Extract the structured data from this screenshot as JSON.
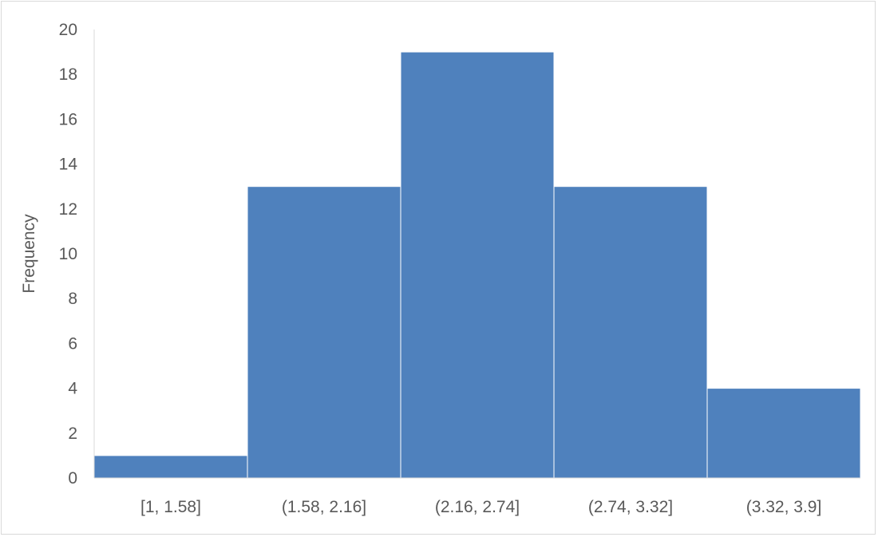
{
  "chart_data": {
    "type": "bar",
    "title": "",
    "xlabel": "",
    "ylabel": "Frequency",
    "categories": [
      "[1, 1.58]",
      "(1.58, 2.16]",
      "(2.16, 2.74]",
      "(2.74, 3.32]",
      "(3.32, 3.9]"
    ],
    "values": [
      1,
      13,
      19,
      13,
      4
    ],
    "ylim": [
      0,
      20
    ],
    "yticks": [
      0,
      2,
      4,
      6,
      8,
      10,
      12,
      14,
      16,
      18,
      20
    ],
    "grid": false,
    "legend": "none",
    "bar_color": "#4f81bd",
    "bar_gap": 0
  }
}
